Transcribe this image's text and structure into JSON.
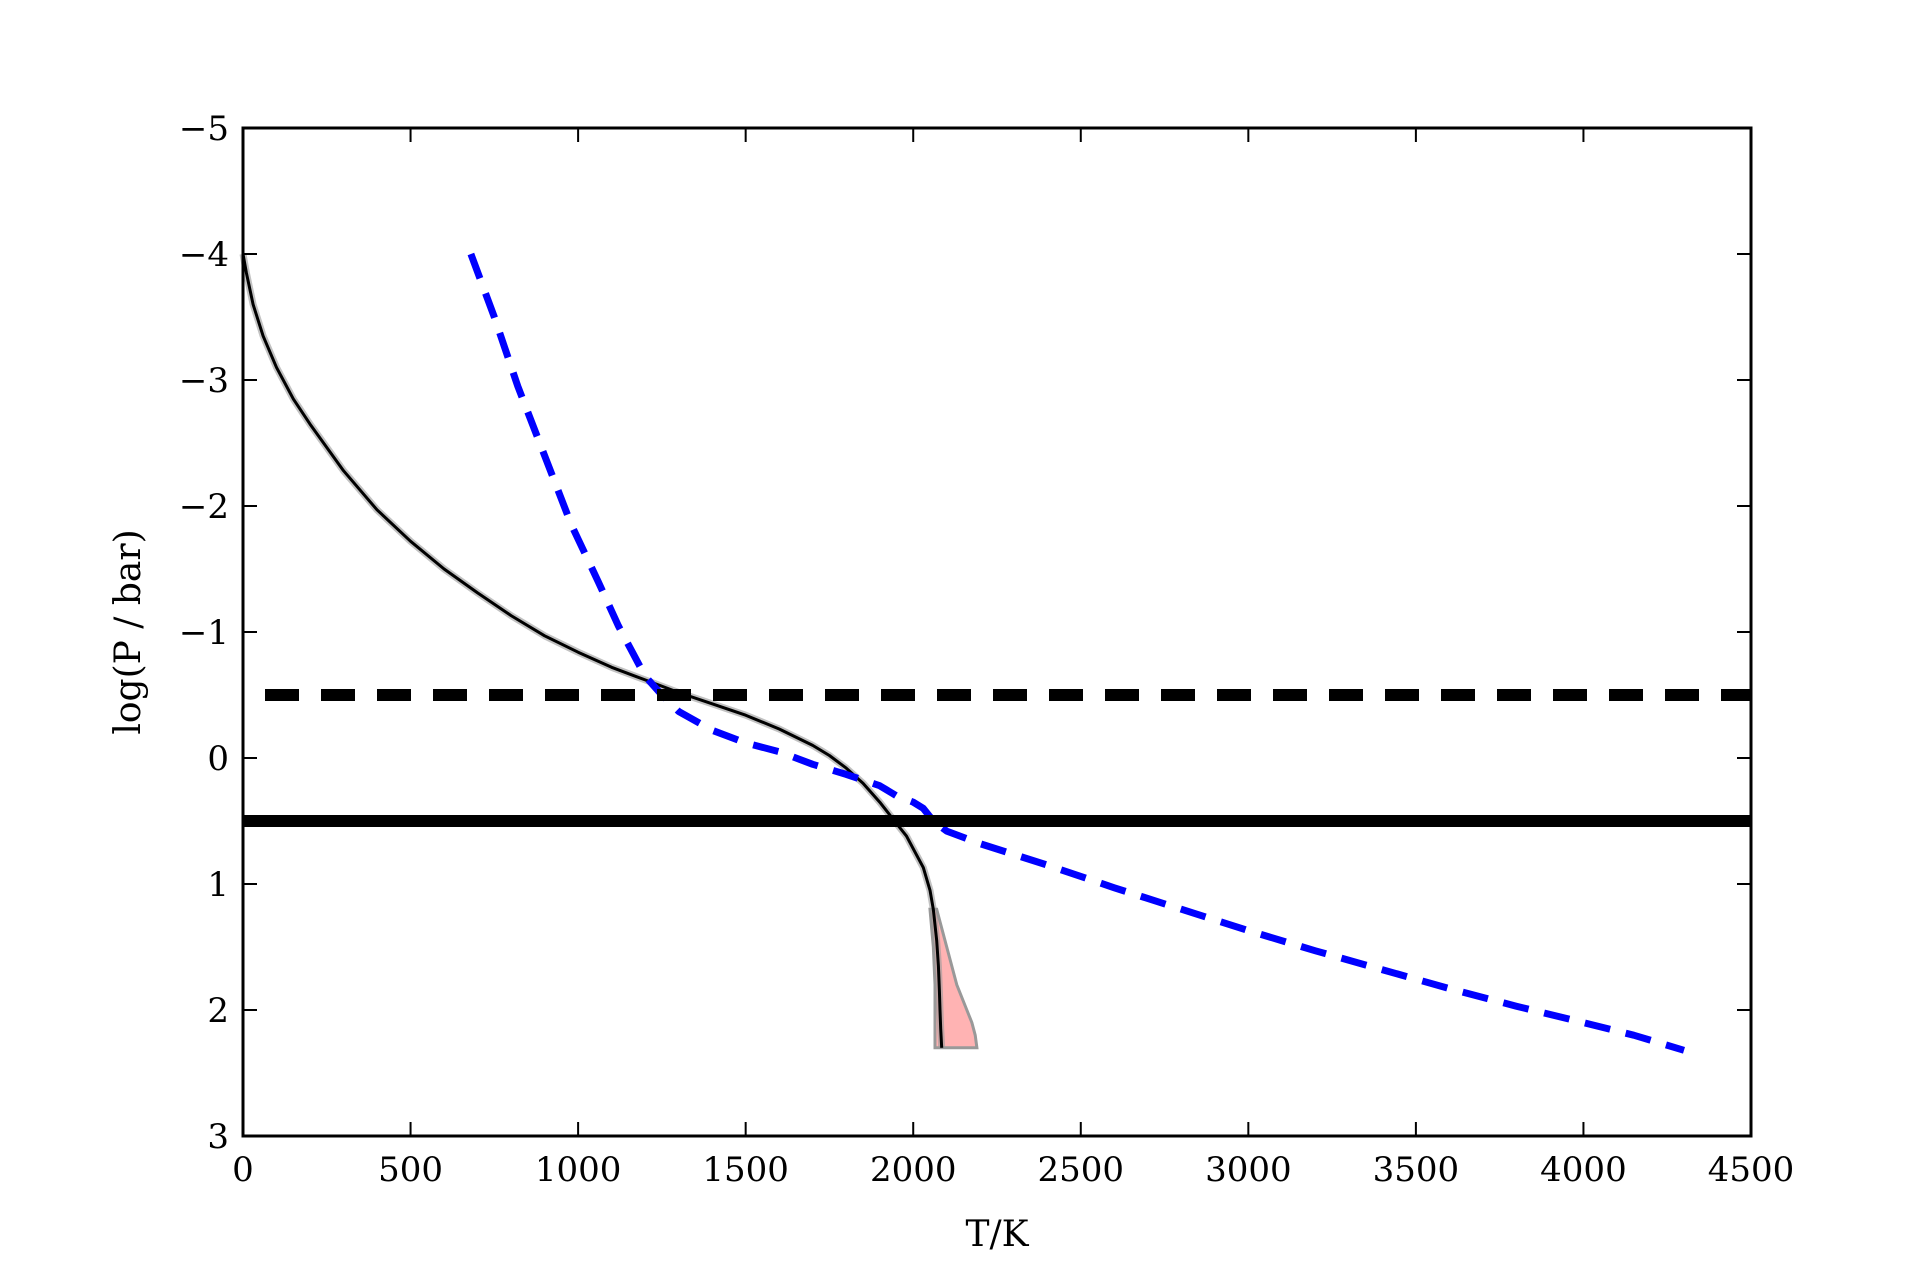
{
  "chart_data": {
    "type": "line",
    "title": "",
    "xlabel": "T/K",
    "ylabel": "log(P / bar)",
    "xlim": [
      0,
      4500
    ],
    "ylim": [
      3,
      -5
    ],
    "y_inverted": true,
    "grid": false,
    "legend": "none",
    "xticks": [
      0,
      500,
      1000,
      1500,
      2000,
      2500,
      3000,
      3500,
      4000,
      4500
    ],
    "xtick_labels": [
      "0",
      "500",
      "1000",
      "1500",
      "2000",
      "2500",
      "3000",
      "3500",
      "4000",
      "4500"
    ],
    "yticks": [
      -5,
      -4,
      -3,
      -2,
      -1,
      0,
      1,
      2,
      3
    ],
    "ytick_labels": [
      "−5",
      "−4",
      "−3",
      "−2",
      "−1",
      "0",
      "1",
      "2",
      "3"
    ],
    "series": [
      {
        "style": "solid",
        "color": "#000000",
        "x": [
          0,
          10,
          30,
          60,
          100,
          150,
          200,
          300,
          400,
          500,
          600,
          700,
          800,
          900,
          1000,
          1100,
          1200,
          1300,
          1400,
          1500,
          1600,
          1700,
          1750,
          1800,
          1850,
          1900,
          1950,
          1980,
          2000,
          2030,
          2050,
          2060,
          2070,
          2075,
          2078,
          2080,
          2082,
          2085
        ],
        "y": [
          -4.0,
          -3.85,
          -3.6,
          -3.35,
          -3.1,
          -2.85,
          -2.65,
          -2.28,
          -1.97,
          -1.72,
          -1.5,
          -1.31,
          -1.13,
          -0.97,
          -0.84,
          -0.72,
          -0.62,
          -0.52,
          -0.43,
          -0.34,
          -0.23,
          -0.1,
          -0.02,
          0.08,
          0.2,
          0.35,
          0.52,
          0.62,
          0.72,
          0.87,
          1.05,
          1.2,
          1.45,
          1.65,
          1.85,
          2.0,
          2.15,
          2.3
        ]
      },
      {
        "style": "dashed",
        "color": "#0000ff",
        "x": [
          680,
          750,
          820,
          900,
          980,
          1060,
          1120,
          1160,
          1200,
          1250,
          1300,
          1400,
          1500,
          1600,
          1700,
          1800,
          1900,
          1950,
          2000,
          2030,
          2060,
          2100,
          2200,
          2400,
          2600,
          2800,
          3000,
          3200,
          3400,
          3600,
          3800,
          4000,
          4150,
          4300
        ],
        "y": [
          -4.0,
          -3.5,
          -2.95,
          -2.4,
          -1.85,
          -1.4,
          -1.05,
          -0.85,
          -0.65,
          -0.5,
          -0.37,
          -0.22,
          -0.12,
          -0.05,
          0.05,
          0.13,
          0.22,
          0.3,
          0.35,
          0.4,
          0.5,
          0.58,
          0.68,
          0.85,
          1.03,
          1.2,
          1.37,
          1.53,
          1.68,
          1.83,
          1.97,
          2.1,
          2.2,
          2.32
        ]
      }
    ],
    "uncertainty_band": {
      "color": "#ff9999",
      "edge_color": "#999999",
      "y": [
        1.2,
        1.5,
        1.8,
        2.0,
        2.1,
        2.2,
        2.3
      ],
      "x_lo": [
        2050,
        2060,
        2065,
        2065,
        2065,
        2065,
        2065
      ],
      "x_hi": [
        2070,
        2100,
        2130,
        2160,
        2175,
        2185,
        2190
      ]
    },
    "hlines": [
      {
        "y": -0.5,
        "style": "dashed",
        "color": "#000000"
      },
      {
        "y": 0.5,
        "style": "solid",
        "color": "#000000"
      }
    ]
  }
}
